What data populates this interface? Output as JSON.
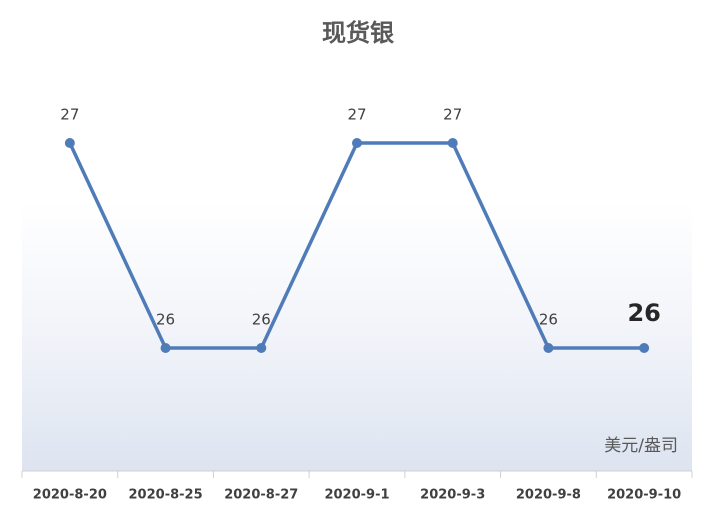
{
  "chart_data": {
    "type": "line",
    "title": "现货银",
    "unit_label": "美元/盎司",
    "categories": [
      "2020-8-20",
      "2020-8-25",
      "2020-8-27",
      "2020-9-1",
      "2020-9-3",
      "2020-9-8",
      "2020-9-10"
    ],
    "values": [
      27,
      26,
      26,
      27,
      27,
      26,
      26
    ],
    "color": "#4f7cb8",
    "ylim": [
      25.4,
      27.4
    ],
    "highlight_last": true
  }
}
